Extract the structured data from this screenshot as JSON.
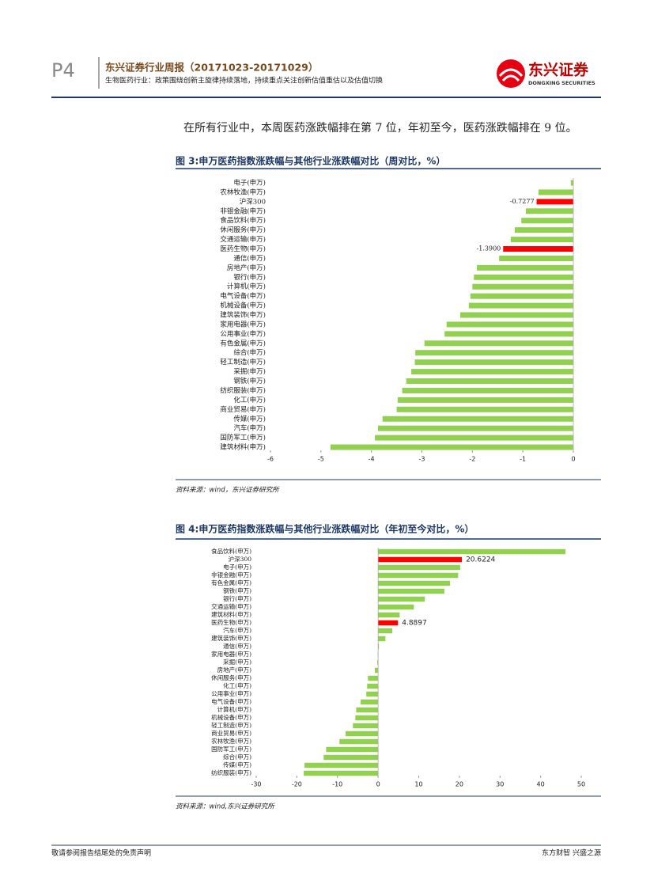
{
  "header": {
    "page": "P4",
    "title": "东兴证券行业周报（20171023-20171029）",
    "subtitle": "生物医药行业：政策围绕创新主旋律持续落地，持续重点关注创新估值重估以及估值切换",
    "logo_cn": "东兴证券",
    "logo_en": "DONGXING SECURITIES"
  },
  "intro": "在所有行业中，本周医药涨跌幅排在第 7 位，年初至今，医药涨跌幅排在 9 位。",
  "chart_data": [
    {
      "type": "hbar",
      "title": "图 3:申万医药指数涨跌幅与其他行业涨跌幅对比（周对比，%）",
      "categories": [
        "电子(申万)",
        "农林牧渔(申万)",
        "沪深300",
        "非银金融(申万)",
        "食品饮料(申万)",
        "休闲服务(申万)",
        "交通运输(申万)",
        "医药生物(申万)",
        "通信(申万)",
        "房地产(申万)",
        "银行(申万)",
        "计算机(申万)",
        "电气设备(申万)",
        "机械设备(申万)",
        "建筑装饰(申万)",
        "家用电器(申万)",
        "公用事业(申万)",
        "有色金属(申万)",
        "综合(申万)",
        "轻工制造(申万)",
        "采掘(申万)",
        "钢铁(申万)",
        "纺织服装(申万)",
        "化工(申万)",
        "商业贸易(申万)",
        "传媒(申万)",
        "汽车(申万)",
        "国防军工(申万)",
        "建筑材料(申万)"
      ],
      "values": [
        -0.05,
        -0.69,
        -0.7277,
        -0.94,
        -1.03,
        -1.16,
        -1.24,
        -1.39,
        -1.47,
        -1.91,
        -1.97,
        -2.0,
        -2.04,
        -2.07,
        -2.24,
        -2.51,
        -2.55,
        -2.95,
        -3.13,
        -3.14,
        -3.21,
        -3.31,
        -3.39,
        -3.48,
        -3.5,
        -3.78,
        -3.87,
        -3.93,
        -4.81
      ],
      "value_labels": [
        null,
        null,
        "-0.7277",
        null,
        null,
        null,
        null,
        "-1.3900",
        null,
        null,
        null,
        null,
        null,
        null,
        null,
        null,
        null,
        null,
        null,
        null,
        null,
        null,
        null,
        null,
        null,
        null,
        null,
        null,
        null
      ],
      "colors": [
        "#92d050",
        "#92d050",
        "#ff0000",
        "#92d050",
        "#92d050",
        "#92d050",
        "#92d050",
        "#ff0000",
        "#92d050",
        "#92d050",
        "#92d050",
        "#92d050",
        "#92d050",
        "#92d050",
        "#92d050",
        "#92d050",
        "#92d050",
        "#92d050",
        "#92d050",
        "#92d050",
        "#92d050",
        "#92d050",
        "#92d050",
        "#92d050",
        "#92d050",
        "#92d050",
        "#92d050",
        "#92d050",
        "#92d050"
      ],
      "xlim": [
        -6,
        0
      ],
      "xticks": [
        -6,
        -5,
        -4,
        -3,
        -2,
        -1,
        0
      ],
      "source": "资料来源：wind，东兴证券研究所"
    },
    {
      "type": "hbar",
      "title": "图 4:申万医药指数涨跌幅与其他行业涨跌幅对比（年初至今对比，%）",
      "categories": [
        "食品饮料(申万)",
        "沪深300",
        "电子(申万)",
        "非银金融(申万)",
        "有色金属(申万)",
        "钢铁(申万)",
        "银行(申万)",
        "交通运输(申万)",
        "建筑材料(申万)",
        "医药生物(申万)",
        "汽车(申万)",
        "建筑装饰(申万)",
        "通信(申万)",
        "家用电器(申万)",
        "采掘(申万)",
        "房地产(申万)",
        "休闲服务(申万)",
        "化工(申万)",
        "公用事业(申万)",
        "电气设备(申万)",
        "计算机(申万)",
        "机械设备(申万)",
        "轻工制造(申万)",
        "商业贸易(申万)",
        "农林牧渔(申万)",
        "国防军工(申万)",
        "综合(申万)",
        "传媒(申万)",
        "纺织服装(申万)"
      ],
      "values": [
        46.1,
        20.6224,
        20.2,
        19.7,
        17.7,
        16.3,
        11.5,
        8.8,
        5.3,
        4.8897,
        3.5,
        1.8,
        0.2,
        -0.1,
        -0.2,
        -0.8,
        -2.5,
        -2.7,
        -2.9,
        -4.3,
        -5.4,
        -5.6,
        -6.2,
        -8.0,
        -9.5,
        -12.8,
        -13.4,
        -18.1,
        -18.3
      ],
      "value_labels": [
        null,
        "20.6224",
        null,
        null,
        null,
        null,
        null,
        null,
        null,
        "4.8897",
        null,
        null,
        null,
        null,
        null,
        null,
        null,
        null,
        null,
        null,
        null,
        null,
        null,
        null,
        null,
        null,
        null,
        null,
        null
      ],
      "colors": [
        "#92d050",
        "#ff0000",
        "#92d050",
        "#92d050",
        "#92d050",
        "#92d050",
        "#92d050",
        "#92d050",
        "#92d050",
        "#ff0000",
        "#92d050",
        "#92d050",
        "#92d050",
        "#92d050",
        "#92d050",
        "#92d050",
        "#92d050",
        "#92d050",
        "#92d050",
        "#92d050",
        "#92d050",
        "#92d050",
        "#92d050",
        "#92d050",
        "#92d050",
        "#92d050",
        "#92d050",
        "#92d050",
        "#92d050"
      ],
      "xlim": [
        -30,
        50
      ],
      "xticks": [
        -30,
        -20,
        -10,
        0,
        10,
        20,
        30,
        40,
        50
      ],
      "source": "资料来源：wind,东兴证券研究所"
    }
  ],
  "footer": {
    "left": "敬请参阅报告结尾处的免责声明",
    "right": "东方财智 兴盛之源"
  }
}
